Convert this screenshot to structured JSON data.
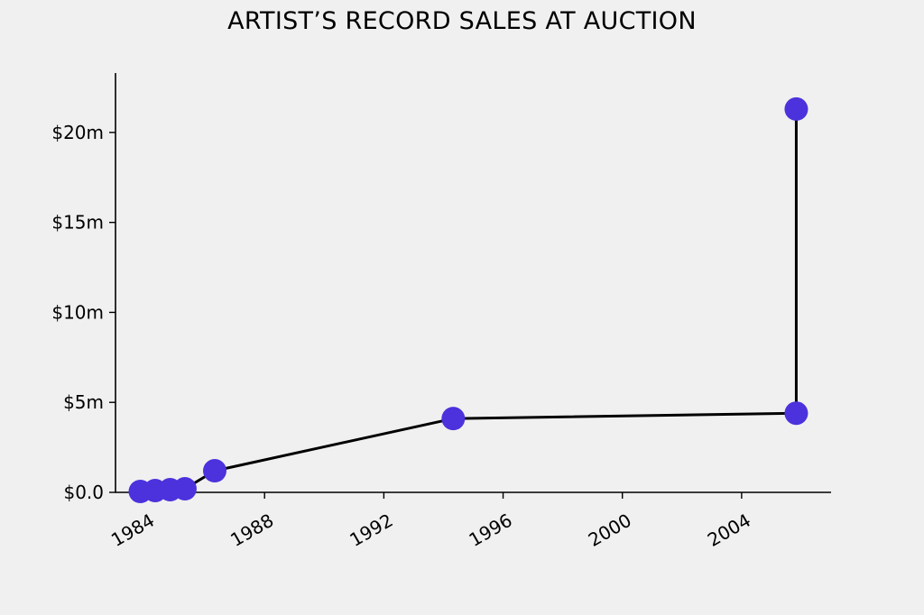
{
  "chart_data": {
    "type": "line",
    "title": "ARTIST’S RECORD SALES AT AUCTION",
    "xlabel": "",
    "ylabel": "",
    "x_axis": "date",
    "xlim": [
      "1983-01-01",
      "2007-01-01"
    ],
    "ylim": [
      0,
      23.3
    ],
    "x_ticks": [
      {
        "value": "1984-01-01",
        "label": "1984"
      },
      {
        "value": "1988-01-01",
        "label": "1988"
      },
      {
        "value": "1992-01-01",
        "label": "1992"
      },
      {
        "value": "1996-01-01",
        "label": "1996"
      },
      {
        "value": "2000-01-01",
        "label": "2000"
      },
      {
        "value": "2004-01-01",
        "label": "2004"
      }
    ],
    "y_ticks": [
      {
        "value": 0,
        "label": "$0.0"
      },
      {
        "value": 5,
        "label": "$5m"
      },
      {
        "value": 10,
        "label": "$10m"
      },
      {
        "value": 15,
        "label": "$15m"
      },
      {
        "value": 20,
        "label": "$20m"
      }
    ],
    "y_unit": "millions of dollars",
    "grid": false,
    "series": [
      {
        "color": "#4b32dc",
        "line_color": "#000000",
        "points": [
          {
            "x": "1983-11-01",
            "y": 0.05
          },
          {
            "x": "1984-05-01",
            "y": 0.1
          },
          {
            "x": "1984-11-01",
            "y": 0.15
          },
          {
            "x": "1985-05-01",
            "y": 0.2
          },
          {
            "x": "1986-05-01",
            "y": 1.2
          },
          {
            "x": "1994-05-01",
            "y": 4.1
          },
          {
            "x": "2005-11-01",
            "y": 4.4
          },
          {
            "x": "2005-11-01",
            "y": 21.3
          }
        ]
      }
    ]
  }
}
